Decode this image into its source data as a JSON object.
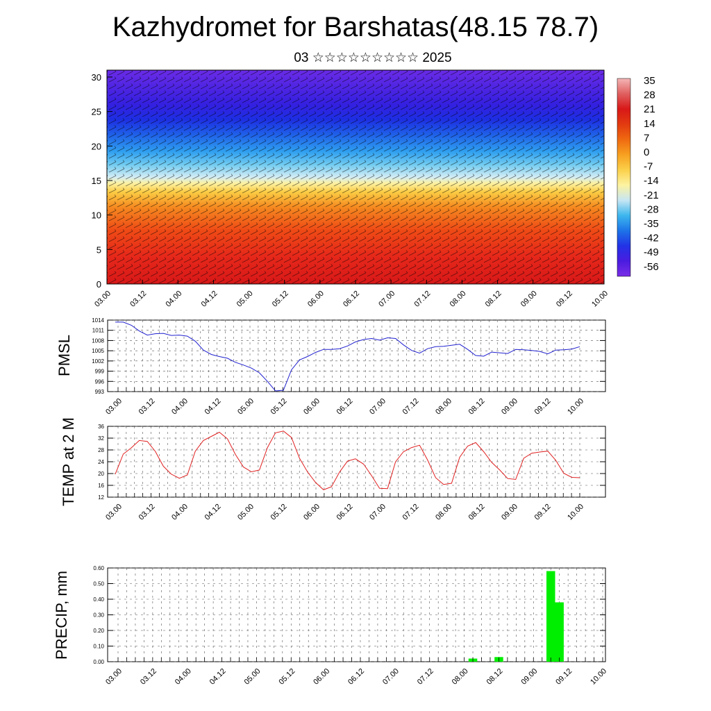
{
  "title": "Kazhydromet for Barshatas(48.15 78.7)",
  "subtitle": "03 ☆☆☆☆☆☆☆☆☆ 2025",
  "time_ticks": [
    "03.00",
    "03.12",
    "04.00",
    "04.12",
    "05.00",
    "05.12",
    "06.00",
    "06.12",
    "07.00",
    "07.12",
    "08.00",
    "08.12",
    "09.00",
    "09.12",
    "10.00"
  ],
  "colorbar": {
    "labels": [
      "35",
      "28",
      "21",
      "14",
      "7",
      "0",
      "-7",
      "-14",
      "-21",
      "-28",
      "-35",
      "-42",
      "-49",
      "-56"
    ],
    "stops": [
      "#f4b6b6",
      "#e06060",
      "#d81818",
      "#e23a10",
      "#ef6a10",
      "#f7a020",
      "#fbd04a",
      "#fdf3a0",
      "#c7e6f3",
      "#3db7ee",
      "#1d74e8",
      "#2233e6",
      "#4a1ce0",
      "#7a2ee6"
    ]
  },
  "chart_data": [
    {
      "type": "heatmap",
      "name_hint": "vertical temperature / wind cross-section",
      "x": [
        "03.00",
        "03.12",
        "04.00",
        "04.12",
        "05.00",
        "05.12",
        "06.00",
        "06.12",
        "07.00",
        "07.12",
        "08.00",
        "08.12",
        "09.00",
        "09.12",
        "10.00"
      ],
      "ylim": [
        0,
        31
      ],
      "yticks": [
        "0",
        "5",
        "10",
        "15",
        "20",
        "25",
        "30"
      ],
      "levels": [
        0,
        5,
        10,
        15,
        20,
        25,
        30
      ],
      "level_temps": [
        28,
        20,
        7,
        -10,
        -35,
        -56,
        -52
      ]
    },
    {
      "type": "line",
      "ylabel": "PMSL",
      "ylim": [
        993,
        1014
      ],
      "yticks": [
        "993",
        "996",
        "999",
        "1002",
        "1005",
        "1008",
        "1011",
        "1014"
      ],
      "color": "#2020d0",
      "values": [
        1013.4,
        1013.4,
        1012.5,
        1010.8,
        1009.6,
        1010.0,
        1010.1,
        1009.5,
        1009.6,
        1009.3,
        1007.8,
        1005.2,
        1003.9,
        1003.3,
        1002.8,
        1001.6,
        1000.8,
        999.9,
        998.5,
        996.0,
        993.2,
        993.4,
        999.4,
        1002.3,
        1003.3,
        1004.5,
        1005.4,
        1005.4,
        1005.6,
        1006.4,
        1007.6,
        1008.3,
        1008.6,
        1008.1,
        1008.8,
        1008.6,
        1006.7,
        1005.1,
        1004.3,
        1005.6,
        1006.2,
        1006.3,
        1006.6,
        1006.9,
        1005.4,
        1003.6,
        1003.4,
        1004.6,
        1004.4,
        1004.2,
        1005.4,
        1005.3,
        1005.1,
        1004.8,
        1004.1,
        1005.2,
        1005.3,
        1005.5,
        1006.2
      ]
    },
    {
      "type": "line",
      "ylabel": "TEMP at 2 M",
      "ylim": [
        12,
        36
      ],
      "yticks": [
        "12",
        "16",
        "20",
        "24",
        "28",
        "32",
        "36"
      ],
      "color": "#e02020",
      "values": [
        19.8,
        26.6,
        28.7,
        31.2,
        30.9,
        27.5,
        22.5,
        19.8,
        18.4,
        19.5,
        27.6,
        31.2,
        32.6,
        34.0,
        31.8,
        26.5,
        22.2,
        20.6,
        21.2,
        28.8,
        33.8,
        34.4,
        32.2,
        25.2,
        20.6,
        17.0,
        14.5,
        15.5,
        20.5,
        24.2,
        25.0,
        23.2,
        19.3,
        15.0,
        14.9,
        24.0,
        27.4,
        28.8,
        29.6,
        24.6,
        18.6,
        16.3,
        16.7,
        25.5,
        29.3,
        30.5,
        27.4,
        23.8,
        21.2,
        18.3,
        18.0,
        25.2,
        26.9,
        27.3,
        27.6,
        24.5,
        20.1,
        18.7,
        18.6
      ]
    },
    {
      "type": "bar",
      "ylabel": "PRECIP, mm",
      "ylim": [
        0,
        0.6
      ],
      "yticks": [
        "0.00",
        "0.10",
        "0.20",
        "0.30",
        "0.40",
        "0.50",
        "0.60"
      ],
      "color": "#00ee00",
      "bars": [
        {
          "x": "08.03",
          "value": 0.02
        },
        {
          "x": "08.12",
          "value": 0.03
        },
        {
          "x": "09.06",
          "value": 0.58
        },
        {
          "x": "09.09",
          "value": 0.38
        }
      ]
    }
  ]
}
